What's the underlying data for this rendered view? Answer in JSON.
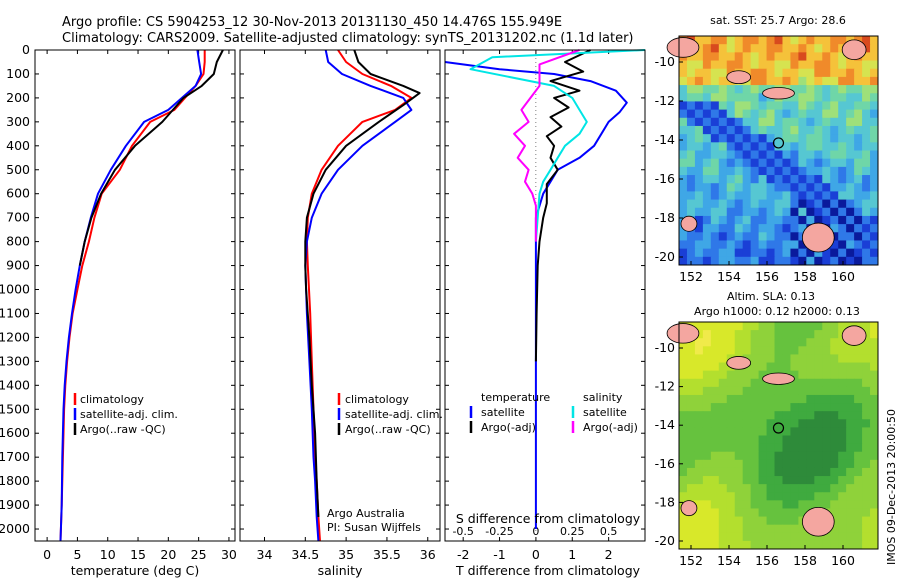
{
  "header": {
    "line1": "Argo profile: CS 5904253_12 30-Nov-2013 20131130_450 14.476S 155.949E",
    "line2": "Climatology: CARS2009. Satellite-adjusted climatology: synTS_20131202.nc (1.1d later)"
  },
  "colors": {
    "climatology": "#ff0000",
    "satellite": "#0000ff",
    "argo": "#000000",
    "satellite_salinity": "#00e5e5",
    "argo_salinity": "#ff00ff"
  },
  "chart_data": [
    {
      "type": "line",
      "id": "temperature",
      "xlabel": "temperature (deg C)",
      "xlim": [
        -2,
        31
      ],
      "xticks": [
        0,
        5,
        10,
        15,
        20,
        25,
        30
      ],
      "ylim": [
        2050,
        0
      ],
      "yticks": [
        0,
        100,
        200,
        300,
        400,
        500,
        600,
        700,
        800,
        900,
        1000,
        1100,
        1200,
        1300,
        1400,
        1500,
        1600,
        1700,
        1800,
        1900,
        2000
      ],
      "legend": [
        "climatology",
        "satellite-adj. clim.",
        "Argo(..raw -QC)"
      ],
      "series": [
        {
          "name": "climatology",
          "color": "#ff0000",
          "x": [
            26,
            26,
            25.8,
            24.5,
            21,
            17,
            14,
            12,
            9,
            7.8,
            6.9,
            5.8,
            5,
            4.2,
            3.7,
            3.3,
            3,
            2.8,
            2.6,
            2.4,
            2.2
          ],
          "y": [
            0,
            50,
            100,
            150,
            250,
            300,
            400,
            500,
            600,
            700,
            800,
            900,
            1000,
            1100,
            1200,
            1300,
            1400,
            1500,
            1700,
            1900,
            2050
          ]
        },
        {
          "name": "satellite-adj. clim.",
          "color": "#0000ff",
          "x": [
            24.8,
            25.1,
            25.4,
            24.5,
            20,
            16,
            13,
            10.5,
            8.4,
            7.2,
            6.2,
            5.4,
            4.7,
            4.1,
            3.6,
            3.2,
            2.9,
            2.7,
            2.5,
            2.4,
            2.2
          ],
          "y": [
            0,
            50,
            100,
            150,
            250,
            300,
            400,
            500,
            600,
            700,
            800,
            900,
            1000,
            1100,
            1200,
            1300,
            1400,
            1500,
            1700,
            1900,
            2050
          ]
        },
        {
          "name": "Argo(..raw -QC)",
          "color": "#000000",
          "x": [
            29,
            28,
            27.5,
            25.5,
            22.5,
            19,
            14.5,
            11.2,
            8.9,
            7.3,
            6.2,
            5.4
          ],
          "y": [
            0,
            50,
            100,
            150,
            200,
            300,
            400,
            500,
            600,
            700,
            800,
            900
          ]
        }
      ]
    },
    {
      "type": "line",
      "id": "salinity",
      "xlabel": "salinity",
      "xlim": [
        33.7,
        36.15
      ],
      "xticks": [
        34,
        34.5,
        35,
        35.5,
        36
      ],
      "ylim": [
        2050,
        0
      ],
      "legend": [
        "climatology",
        "satellite-adj. clim.",
        "Argo(..raw -QC)"
      ],
      "annotations": [
        "Argo Australia",
        "PI: Susan Wijffels"
      ],
      "series": [
        {
          "name": "climatology",
          "color": "#ff0000",
          "x": [
            34.9,
            35,
            35.2,
            35.55,
            35.8,
            35.6,
            35.2,
            34.9,
            34.7,
            34.58,
            34.53,
            34.52,
            34.53,
            34.56,
            34.58,
            34.6,
            34.62,
            34.64,
            34.66,
            34.68
          ],
          "y": [
            0,
            50,
            100,
            150,
            200,
            250,
            300,
            400,
            500,
            600,
            700,
            800,
            900,
            1100,
            1300,
            1500,
            1700,
            1800,
            1950,
            2050
          ]
        },
        {
          "name": "satellite-adj. clim.",
          "color": "#0000ff",
          "x": [
            34.75,
            34.78,
            34.95,
            35.3,
            35.7,
            35.8,
            35.6,
            35.2,
            34.9,
            34.7,
            34.58,
            34.52,
            34.5,
            34.52,
            34.55,
            34.58,
            34.6,
            34.62,
            34.64,
            34.66
          ],
          "y": [
            0,
            50,
            100,
            150,
            200,
            250,
            300,
            400,
            500,
            600,
            700,
            800,
            900,
            1100,
            1300,
            1500,
            1700,
            1800,
            1950,
            2050
          ]
        },
        {
          "name": "Argo(..raw -QC)",
          "color": "#000000",
          "x": [
            35.1,
            35.15,
            35.3,
            35.7,
            35.9,
            35.7,
            35.4,
            35,
            34.75,
            34.6,
            34.52,
            34.5,
            34.5,
            34.51,
            34.55,
            34.58,
            34.62,
            34.64,
            34.66
          ],
          "y": [
            0,
            50,
            100,
            150,
            180,
            230,
            300,
            400,
            500,
            600,
            700,
            800,
            900,
            1000,
            1200,
            1400,
            1600,
            1800,
            1950
          ]
        }
      ]
    },
    {
      "type": "line",
      "id": "differences",
      "xlabel": "T difference from climatology",
      "xlabel2": "S difference from climatology",
      "xlim": [
        -2.5,
        3
      ],
      "xticks": [
        -2,
        -1,
        0,
        1,
        2
      ],
      "xticks2_labels": [
        "-0.5",
        "-0.25",
        "0",
        "0.25",
        "0.5"
      ],
      "ylim": [
        2050,
        0
      ],
      "legend": {
        "temperature_title": "temperature",
        "salinity_title": "salinity",
        "entries": [
          "satellite",
          "Argo(-adj)",
          "satellite",
          "Argo(-adj)"
        ]
      },
      "series": [
        {
          "name": "satellite",
          "color": "#0000ff",
          "x": [
            -2.5,
            -1,
            0.5,
            1.5,
            2.2,
            2.5,
            2.3,
            2,
            1.8,
            1.6,
            1.2,
            0.6,
            0.2,
            0,
            0,
            0
          ],
          "y": [
            50,
            80,
            100,
            130,
            170,
            220,
            260,
            300,
            350,
            400,
            450,
            500,
            600,
            700,
            900,
            2000
          ]
        },
        {
          "name": "Argo(-adj)",
          "color": "#000000",
          "x": [
            1.5,
            0.8,
            1.3,
            0.4,
            1.2,
            0.5,
            0.9,
            0.4,
            0.7,
            0.3,
            0.5,
            0.4,
            0.6,
            0.3,
            0.3,
            0.2,
            0.1,
            0.05,
            0.02,
            0
          ],
          "y": [
            0,
            50,
            90,
            130,
            170,
            200,
            240,
            280,
            320,
            360,
            400,
            450,
            500,
            560,
            640,
            700,
            800,
            900,
            1100,
            1300
          ]
        },
        {
          "name": "satellite",
          "color": "#00e5e5",
          "x": [
            3,
            -1.2,
            -1.8,
            0.5,
            1,
            1.2,
            1.4,
            1.2,
            0.8,
            0.6,
            0.4,
            0.2,
            0.1,
            0
          ],
          "y": [
            0,
            30,
            80,
            150,
            200,
            250,
            300,
            350,
            400,
            450,
            500,
            550,
            600,
            800
          ]
        },
        {
          "name": "Argo(-adj)",
          "color": "#ff00ff",
          "x": [
            1.2,
            0.1,
            0.1,
            -0.4,
            -0.2,
            -0.6,
            -0.3,
            -0.5,
            -0.2,
            -0.3,
            -0.1,
            0,
            0
          ],
          "y": [
            0,
            60,
            150,
            250,
            300,
            350,
            400,
            450,
            500,
            550,
            600,
            650,
            800
          ]
        }
      ]
    },
    {
      "type": "heatmap",
      "id": "sst-map",
      "title": "sat. SST: 25.7 Argo: 28.6",
      "xticks": [
        "152",
        "154",
        "156",
        "158",
        "160"
      ],
      "yticks": [
        "-10",
        "-12",
        "-14",
        "-16",
        "-18",
        "-20"
      ],
      "argo_position": [
        155.949,
        -14.476
      ]
    },
    {
      "type": "heatmap",
      "id": "sla-map",
      "title": "Altim. SLA: 0.13",
      "subtitle": "Argo h1000: 0.12 h2000: 0.13",
      "xticks": [
        "152",
        "154",
        "156",
        "158",
        "160"
      ],
      "yticks": [
        "-10",
        "-12",
        "-14",
        "-16",
        "-18",
        "-20"
      ],
      "argo_position": [
        155.949,
        -14.476
      ]
    }
  ],
  "credit": "IMOS 09-Dec-2013 20:00:50"
}
